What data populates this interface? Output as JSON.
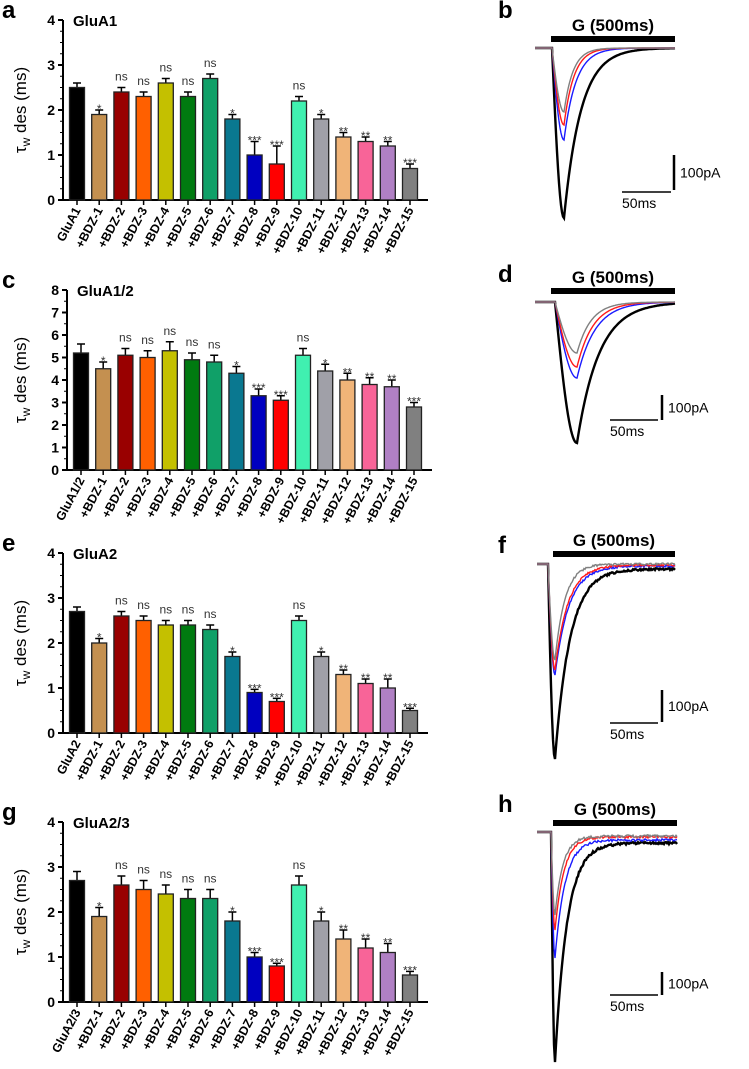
{
  "chart_data": [
    {
      "panel": "a",
      "type": "bar",
      "title": "GluA1",
      "ylabel_main": "τ",
      "ylabel_sub": "w",
      "ylabel_rest": " des (ms)",
      "ylim": [
        0,
        4
      ],
      "yticks": [
        0,
        1,
        2,
        3,
        4
      ],
      "categories": [
        "GluA1",
        "+BDZ-1",
        "+BDZ-2",
        "+BDZ-3",
        "+BDZ-4",
        "+BDZ-5",
        "+BDZ-6",
        "+BDZ-7",
        "+BDZ-8",
        "+BDZ-9",
        "+BDZ-10",
        "+BDZ-11",
        "+BDZ-12",
        "+BDZ-13",
        "+BDZ-14",
        "+BDZ-15"
      ],
      "values": [
        2.5,
        1.9,
        2.4,
        2.3,
        2.6,
        2.3,
        2.7,
        1.8,
        1.0,
        0.8,
        2.2,
        1.8,
        1.4,
        1.3,
        1.2,
        0.7
      ],
      "errors": [
        0.1,
        0.1,
        0.1,
        0.1,
        0.1,
        0.1,
        0.1,
        0.1,
        0.3,
        0.4,
        0.1,
        0.1,
        0.1,
        0.1,
        0.1,
        0.1
      ],
      "significance": [
        "",
        "*",
        "ns",
        "ns",
        "ns",
        "ns",
        "ns",
        "*",
        "***",
        "***",
        "ns",
        "*",
        "**",
        "**",
        "**",
        "***"
      ]
    },
    {
      "panel": "c",
      "type": "bar",
      "title": "GluA1/2",
      "ylabel_main": "τ",
      "ylabel_sub": "w",
      "ylabel_rest": " des (ms)",
      "ylim": [
        0,
        8
      ],
      "yticks": [
        0,
        1,
        2,
        3,
        4,
        5,
        6,
        7,
        8
      ],
      "categories": [
        "GluA1/2",
        "+BDZ-1",
        "+BDZ-2",
        "+BDZ-3",
        "+BDZ-4",
        "+BDZ-5",
        "+BDZ-6",
        "+BDZ-7",
        "+BDZ-8",
        "+BDZ-9",
        "+BDZ-10",
        "+BDZ-11",
        "+BDZ-12",
        "+BDZ-13",
        "+BDZ-14",
        "+BDZ-15"
      ],
      "values": [
        5.2,
        4.5,
        5.1,
        5.0,
        5.3,
        4.9,
        4.8,
        4.3,
        3.3,
        3.1,
        5.1,
        4.4,
        4.0,
        3.8,
        3.7,
        2.8
      ],
      "errors": [
        0.4,
        0.3,
        0.3,
        0.3,
        0.4,
        0.3,
        0.3,
        0.3,
        0.3,
        0.2,
        0.3,
        0.3,
        0.3,
        0.3,
        0.3,
        0.2
      ],
      "significance": [
        "",
        "*",
        "ns",
        "ns",
        "ns",
        "ns",
        "ns",
        "*",
        "***",
        "***",
        "ns",
        "*",
        "**",
        "**",
        "**",
        "***"
      ]
    },
    {
      "panel": "e",
      "type": "bar",
      "title": "GluA2",
      "ylabel_main": "τ",
      "ylabel_sub": "w",
      "ylabel_rest": " des (ms)",
      "ylim": [
        0,
        4
      ],
      "yticks": [
        0,
        1,
        2,
        3,
        4
      ],
      "categories": [
        "GluA2",
        "+BDZ-1",
        "+BDZ-2",
        "+BDZ-3",
        "+BDZ-4",
        "+BDZ-5",
        "+BDZ-6",
        "+BDZ-7",
        "+BDZ-8",
        "+BDZ-9",
        "+BDZ-10",
        "+BDZ-11",
        "+BDZ-12",
        "+BDZ-13",
        "+BDZ-14",
        "+BDZ-15"
      ],
      "values": [
        2.7,
        2.0,
        2.6,
        2.5,
        2.4,
        2.4,
        2.3,
        1.7,
        0.9,
        0.7,
        2.5,
        1.7,
        1.3,
        1.1,
        1.0,
        0.5
      ],
      "errors": [
        0.1,
        0.1,
        0.1,
        0.1,
        0.1,
        0.1,
        0.1,
        0.1,
        0.07,
        0.07,
        0.1,
        0.1,
        0.1,
        0.1,
        0.2,
        0.05
      ],
      "significance": [
        "",
        "*",
        "ns",
        "ns",
        "ns",
        "ns",
        "ns",
        "*",
        "***",
        "***",
        "ns",
        "*",
        "**",
        "**",
        "**",
        "***"
      ]
    },
    {
      "panel": "g",
      "type": "bar",
      "title": "GluA2/3",
      "ylabel_main": "τ",
      "ylabel_sub": "w",
      "ylabel_rest": " des (ms)",
      "ylim": [
        0,
        4
      ],
      "yticks": [
        0,
        1,
        2,
        3,
        4
      ],
      "categories": [
        "GluA2/3",
        "+BDZ-1",
        "+BDZ-2",
        "+BDZ-3",
        "+BDZ-4",
        "+BDZ-5",
        "+BDZ-6",
        "+BDZ-7",
        "+BDZ-8",
        "+BDZ-9",
        "+BDZ-10",
        "+BDZ-11",
        "+BDZ-12",
        "+BDZ-13",
        "+BDZ-14",
        "+BDZ-15"
      ],
      "values": [
        2.7,
        1.9,
        2.6,
        2.5,
        2.4,
        2.3,
        2.3,
        1.8,
        1.0,
        0.8,
        2.6,
        1.8,
        1.4,
        1.2,
        1.1,
        0.6
      ],
      "errors": [
        0.2,
        0.2,
        0.2,
        0.2,
        0.2,
        0.2,
        0.2,
        0.2,
        0.1,
        0.06,
        0.2,
        0.2,
        0.2,
        0.2,
        0.2,
        0.08
      ],
      "significance": [
        "",
        "*",
        "ns",
        "ns",
        "ns",
        "ns",
        "ns",
        "*",
        "***",
        "***",
        "ns",
        "*",
        "**",
        "**",
        "**",
        "***"
      ]
    }
  ],
  "bar_colors": [
    "#000000",
    "#c49050",
    "#990000",
    "#ff6000",
    "#c4c000",
    "#007a10",
    "#10a068",
    "#0a7890",
    "#0000c0",
    "#ff0000",
    "#40f0b0",
    "#a0a0a8",
    "#f0b478",
    "#f86498",
    "#b080c4",
    "#808080"
  ],
  "traces": [
    {
      "panel": "b",
      "stimulus_label": "G (500ms)",
      "scale_current": "100pA",
      "scale_time": "50ms"
    },
    {
      "panel": "d",
      "stimulus_label": "G (500ms)",
      "scale_current": "100pA",
      "scale_time": "50ms"
    },
    {
      "panel": "f",
      "stimulus_label": "G (500ms)",
      "scale_current": "100pA",
      "scale_time": "50ms"
    },
    {
      "panel": "h",
      "stimulus_label": "G (500ms)",
      "scale_current": "100pA",
      "scale_time": "50ms"
    }
  ],
  "trace_colors": {
    "control": "#000000",
    "blue": "#1a1aff",
    "red": "#ff1a1a",
    "gray": "#808080"
  }
}
